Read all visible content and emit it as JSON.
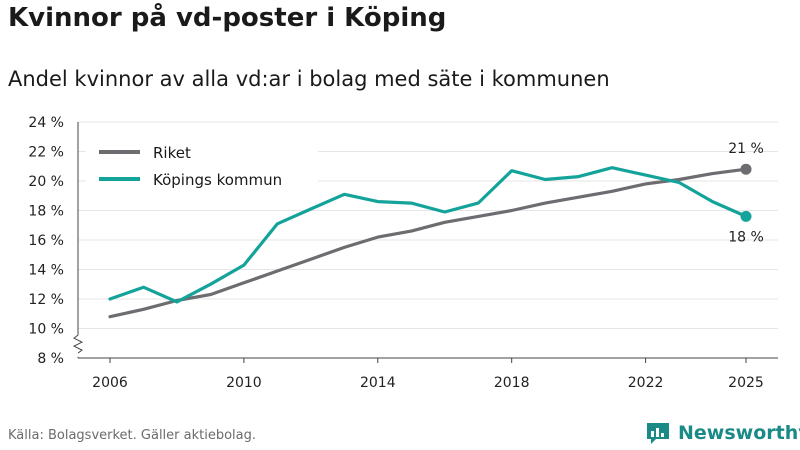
{
  "title": "Kvinnor på vd-poster i Köping",
  "subtitle": "Andel kvinnor av alla vd:ar i bolag med säte i kommunen",
  "source": "Källa: Bolagsverket. Gäller aktiebolag.",
  "brand": "Newsworthy",
  "colors": {
    "riket": "#6d6c70",
    "koping": "#14a39a",
    "brand": "#1a8a86"
  },
  "chart_data": {
    "type": "line",
    "title": "Kvinnor på vd-poster i Köping",
    "subtitle": "Andel kvinnor av alla vd:ar i bolag med säte i kommunen",
    "xlabel": "",
    "ylabel": "",
    "x": [
      2006,
      2007,
      2008,
      2009,
      2010,
      2011,
      2012,
      2013,
      2014,
      2015,
      2016,
      2017,
      2018,
      2019,
      2020,
      2021,
      2022,
      2023,
      2024,
      2025
    ],
    "xlim": [
      2006,
      2025
    ],
    "xticks": [
      2006,
      2010,
      2014,
      2018,
      2022,
      2025
    ],
    "xtick_labels": [
      "2006",
      "2010",
      "2014",
      "2018",
      "2022",
      "2025"
    ],
    "ylim": [
      8,
      24
    ],
    "yticks": [
      8,
      10,
      12,
      14,
      16,
      18,
      20,
      22,
      24
    ],
    "ytick_labels": [
      "8 %",
      "10 %",
      "12 %",
      "14 %",
      "16 %",
      "18 %",
      "20 %",
      "22 %",
      "24 %"
    ],
    "axis_break": true,
    "grid": true,
    "legend_position": "top-left",
    "series": [
      {
        "name": "Riket",
        "color": "#6d6c70",
        "values": [
          10.8,
          11.3,
          11.9,
          12.3,
          13.1,
          13.9,
          14.7,
          15.5,
          16.2,
          16.6,
          17.2,
          17.6,
          18.0,
          18.5,
          18.9,
          19.3,
          19.8,
          20.1,
          20.5,
          20.8
        ],
        "end_label": "21 %"
      },
      {
        "name": "Köpings kommun",
        "color": "#14a39a",
        "values": [
          12.0,
          12.8,
          11.8,
          13.0,
          14.3,
          17.1,
          18.1,
          19.1,
          18.6,
          18.5,
          17.9,
          18.5,
          20.7,
          20.1,
          20.3,
          20.9,
          20.4,
          19.9,
          18.6,
          17.6
        ],
        "end_label": "18 %"
      }
    ]
  }
}
